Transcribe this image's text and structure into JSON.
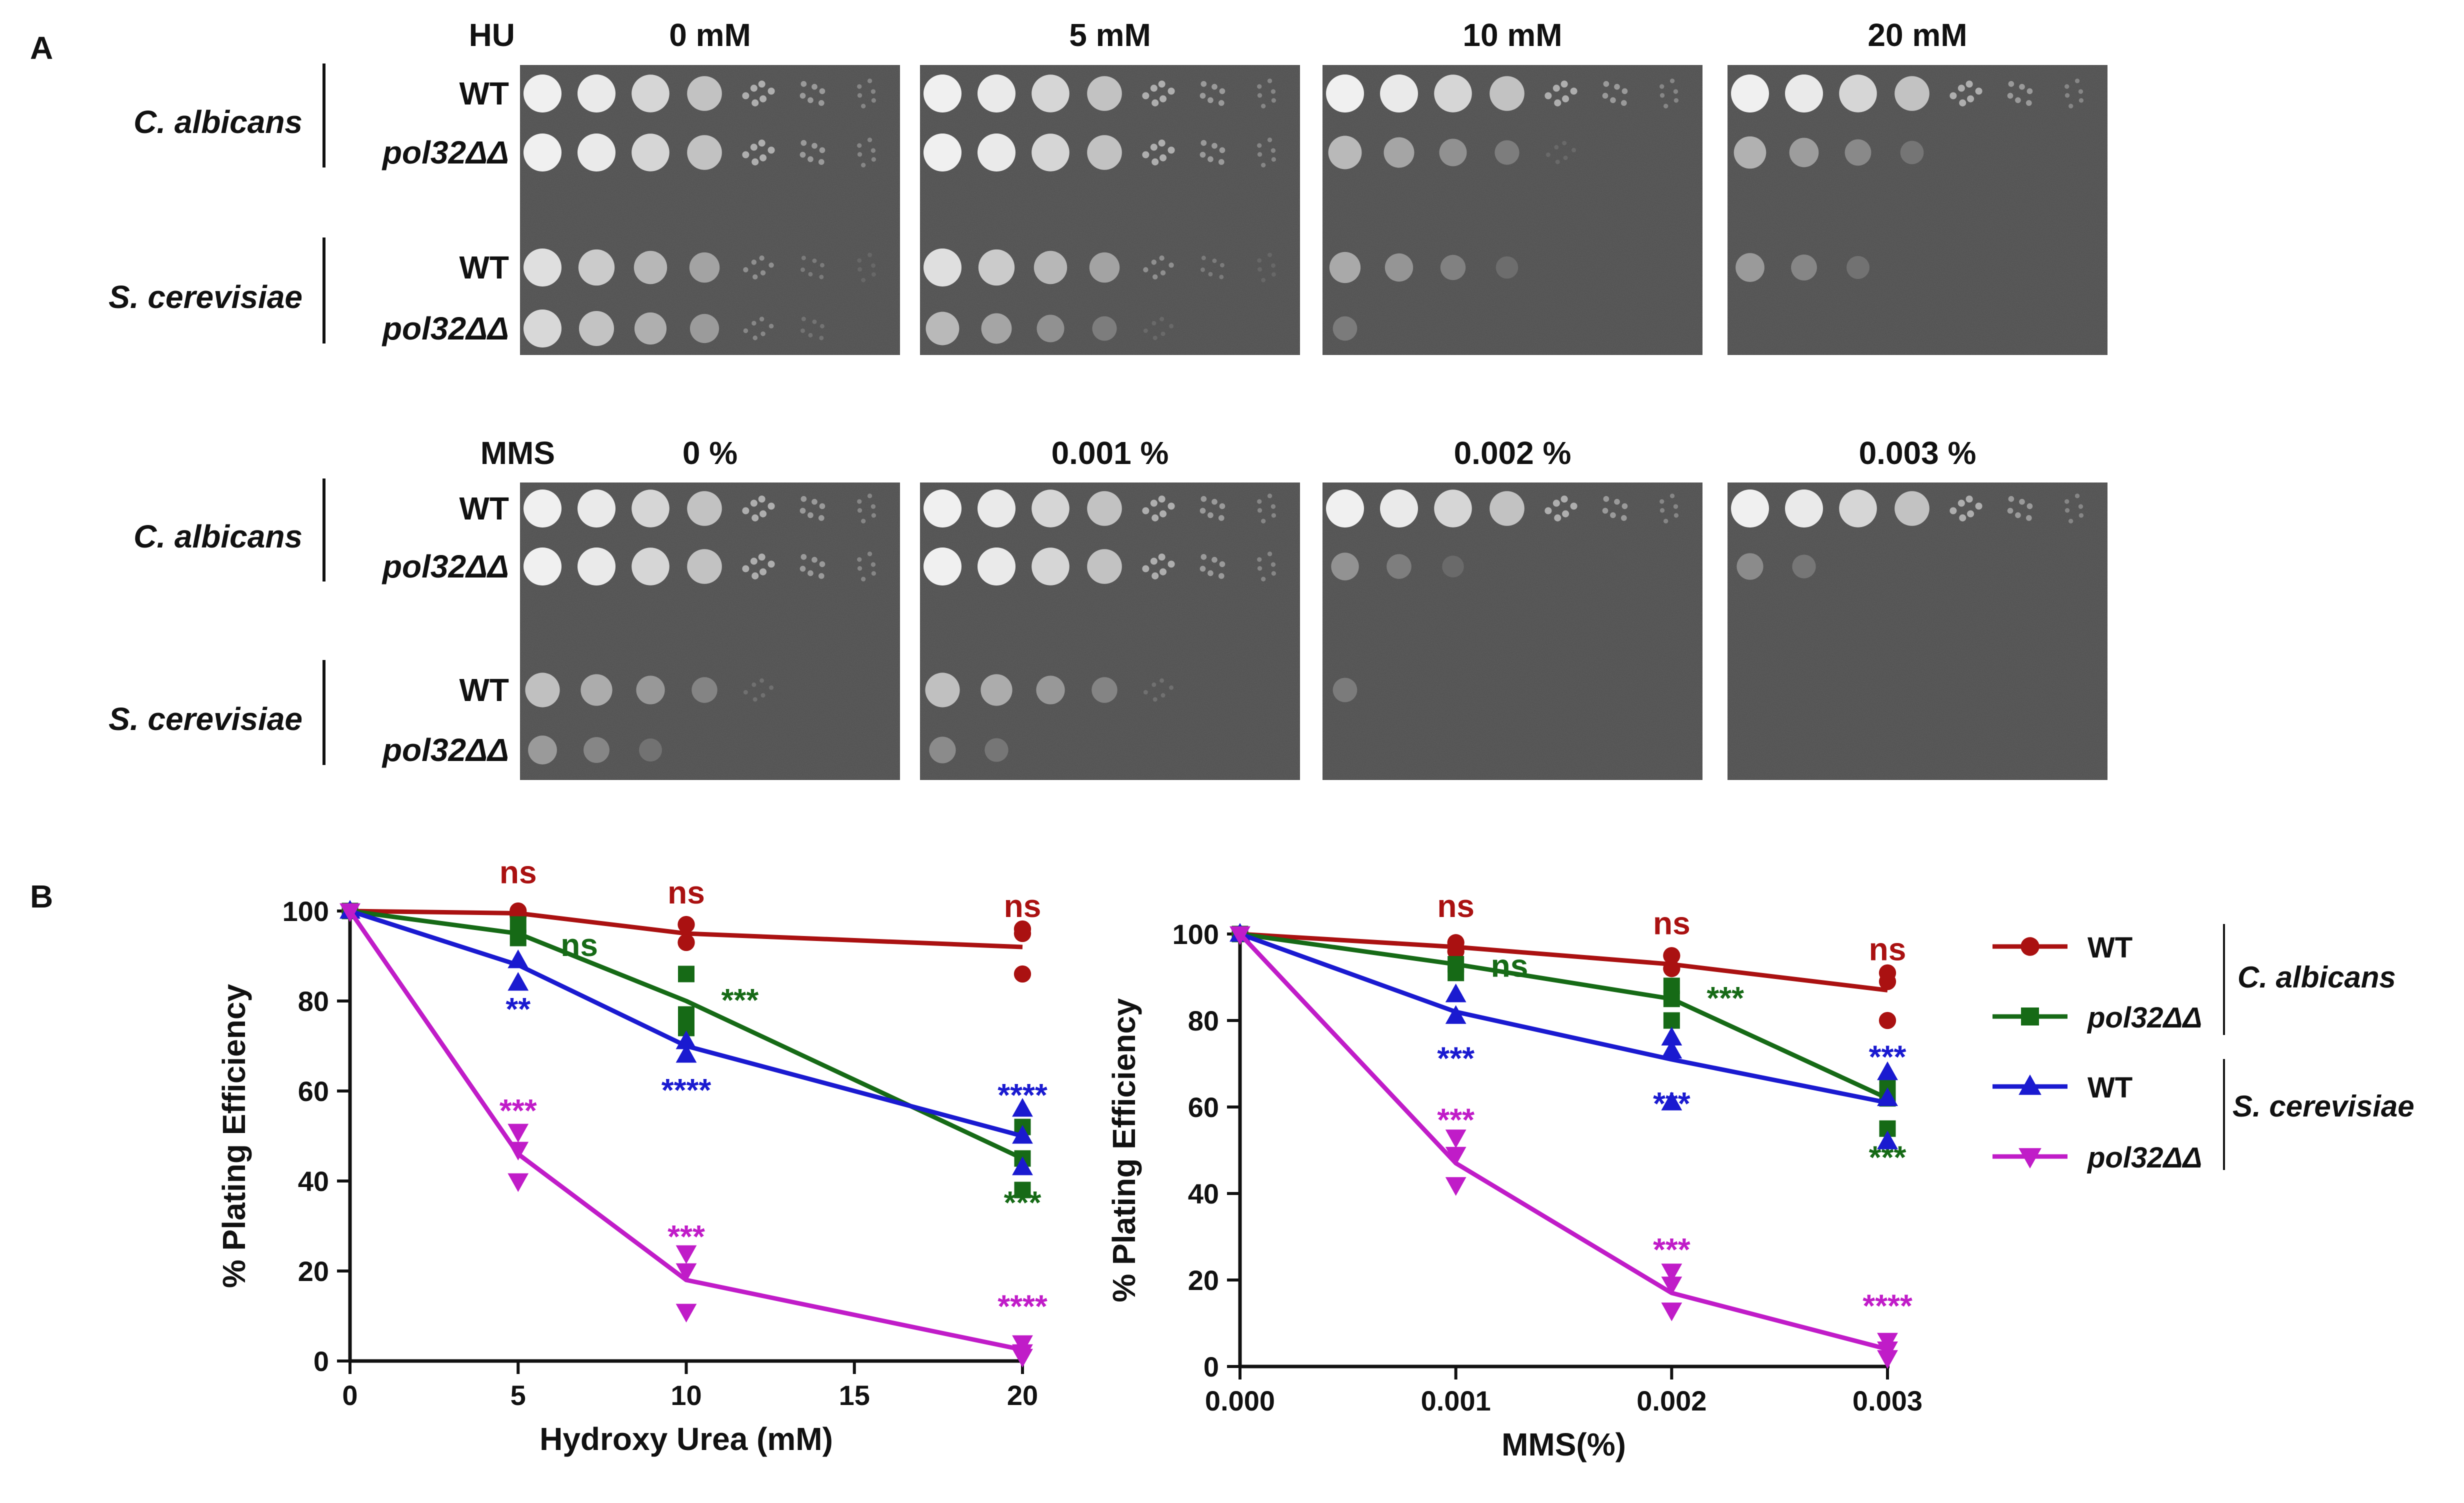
{
  "panel_a": {
    "label": "A",
    "hu": {
      "agent": "HU",
      "concentrations": [
        "0 mM",
        "5 mM",
        "10 mM",
        "20 mM"
      ],
      "growth": {
        "calb_wt": [
          1.0,
          1.0,
          1.0,
          1.0
        ],
        "calb_pol": [
          1.0,
          1.0,
          0.55,
          0.5
        ],
        "scer_wt": [
          0.8,
          0.8,
          0.45,
          0.35
        ],
        "scer_pol": [
          0.75,
          0.55,
          0.15,
          0.0
        ]
      }
    },
    "mms": {
      "agent": "MMS",
      "concentrations": [
        "0 %",
        "0.001 %",
        "0.002 %",
        "0.003 %"
      ],
      "growth": {
        "calb_wt": [
          1.0,
          1.0,
          1.0,
          1.0
        ],
        "calb_pol": [
          1.0,
          1.0,
          0.3,
          0.25
        ],
        "scer_wt": [
          0.6,
          0.6,
          0.15,
          0.0
        ],
        "scer_pol": [
          0.35,
          0.25,
          0.0,
          0.0
        ]
      }
    },
    "species": [
      "C. albicans",
      "S. cerevisiae"
    ],
    "strains": [
      "WT",
      "pol32ΔΔ"
    ]
  },
  "panel_b": {
    "label": "B",
    "legend": {
      "items": [
        {
          "label": "WT",
          "color": "#aa1111",
          "marker": "circle"
        },
        {
          "label": "pol32ΔΔ",
          "color": "#166a16",
          "marker": "square"
        },
        {
          "label": "WT",
          "color": "#1a1ad0",
          "marker": "triangle-up"
        },
        {
          "label": "pol32ΔΔ",
          "color": "#c01cc8",
          "marker": "triangle-down"
        }
      ],
      "group_labels": [
        "C. albicans",
        "S. cerevisiae"
      ]
    }
  },
  "chart_data": [
    {
      "type": "line",
      "xlabel": "Hydroxy Urea (mM)",
      "ylabel": "% Plating Efficiency",
      "xlim": [
        0,
        20
      ],
      "ylim": [
        0,
        100
      ],
      "xticks": [
        0,
        5,
        10,
        15,
        20
      ],
      "yticks": [
        0,
        20,
        40,
        60,
        80,
        100
      ],
      "x": [
        0,
        5,
        10,
        20
      ],
      "series": [
        {
          "key": "calb_wt",
          "color": "#aa1111",
          "marker": "circle",
          "values": [
            100,
            99.5,
            95,
            92
          ],
          "points": [
            [
              0,
              100
            ],
            [
              5,
              100
            ],
            [
              5,
              99
            ],
            [
              10,
              97
            ],
            [
              10,
              93
            ],
            [
              20,
              96
            ],
            [
              20,
              95
            ],
            [
              20,
              86
            ]
          ],
          "annotations": [
            {
              "x": 5,
              "text": "ns"
            },
            {
              "x": 10,
              "text": "ns"
            },
            {
              "x": 20,
              "text": "ns"
            }
          ]
        },
        {
          "key": "calb_pol",
          "color": "#166a16",
          "marker": "square",
          "values": [
            100,
            95,
            80,
            45
          ],
          "points": [
            [
              0,
              100
            ],
            [
              5,
              97
            ],
            [
              5,
              94
            ],
            [
              10,
              86
            ],
            [
              10,
              77
            ],
            [
              10,
              74
            ],
            [
              20,
              52
            ],
            [
              20,
              45
            ],
            [
              20,
              38
            ]
          ],
          "annotations": [
            {
              "x": 5,
              "text": "ns"
            },
            {
              "x": 10,
              "text": "***"
            },
            {
              "x": 20,
              "text": "***"
            }
          ]
        },
        {
          "key": "scer_wt",
          "color": "#1a1ad0",
          "marker": "triangle-up",
          "values": [
            100,
            88,
            70,
            50
          ],
          "points": [
            [
              0,
              100
            ],
            [
              5,
              89
            ],
            [
              5,
              84
            ],
            [
              10,
              71
            ],
            [
              10,
              68
            ],
            [
              20,
              56
            ],
            [
              20,
              50
            ],
            [
              20,
              43
            ]
          ],
          "annotations": [
            {
              "x": 5,
              "text": "**"
            },
            {
              "x": 10,
              "text": "****"
            },
            {
              "x": 20,
              "text": "****"
            }
          ]
        },
        {
          "key": "scer_pol",
          "color": "#c01cc8",
          "marker": "triangle-down",
          "values": [
            100,
            46,
            18,
            2.5
          ],
          "points": [
            [
              0,
              100
            ],
            [
              5,
              51
            ],
            [
              5,
              47
            ],
            [
              5,
              40
            ],
            [
              10,
              24
            ],
            [
              10,
              20
            ],
            [
              10,
              11
            ],
            [
              20,
              4
            ],
            [
              20,
              2
            ],
            [
              20,
              1
            ]
          ],
          "annotations": [
            {
              "x": 5,
              "text": "***"
            },
            {
              "x": 10,
              "text": "***"
            },
            {
              "x": 20,
              "text": "****"
            }
          ]
        }
      ]
    },
    {
      "type": "line",
      "xlabel": "MMS(%)",
      "ylabel": "% Plating Efficiency",
      "xlim": [
        0,
        0.003
      ],
      "ylim": [
        0,
        100
      ],
      "xticks": [
        "0.000",
        "0.001",
        "0.002",
        "0.003"
      ],
      "yticks": [
        0,
        20,
        40,
        60,
        80,
        100
      ],
      "x": [
        0,
        0.001,
        0.002,
        0.003
      ],
      "series": [
        {
          "key": "calb_wt",
          "color": "#aa1111",
          "marker": "circle",
          "values": [
            100,
            97,
            93,
            87
          ],
          "points": [
            [
              0,
              100
            ],
            [
              0.001,
              98
            ],
            [
              0.001,
              96
            ],
            [
              0.002,
              95
            ],
            [
              0.002,
              92
            ],
            [
              0.003,
              91
            ],
            [
              0.003,
              89
            ],
            [
              0.003,
              80
            ]
          ],
          "annotations": [
            {
              "x": 0.001,
              "text": "ns"
            },
            {
              "x": 0.002,
              "text": "ns"
            },
            {
              "x": 0.003,
              "text": "ns"
            }
          ]
        },
        {
          "key": "calb_pol",
          "color": "#166a16",
          "marker": "square",
          "values": [
            100,
            93,
            85,
            62
          ],
          "points": [
            [
              0,
              100
            ],
            [
              0.001,
              93
            ],
            [
              0.001,
              91
            ],
            [
              0.002,
              88
            ],
            [
              0.002,
              85
            ],
            [
              0.002,
              80
            ],
            [
              0.003,
              65
            ],
            [
              0.003,
              62
            ],
            [
              0.003,
              55
            ]
          ],
          "annotations": [
            {
              "x": 0.001,
              "text": "ns"
            },
            {
              "x": 0.002,
              "text": "***"
            },
            {
              "x": 0.003,
              "text": "***"
            }
          ]
        },
        {
          "key": "scer_wt",
          "color": "#1a1ad0",
          "marker": "triangle-up",
          "values": [
            100,
            82,
            71,
            61
          ],
          "points": [
            [
              0,
              100
            ],
            [
              0.001,
              86
            ],
            [
              0.001,
              81
            ],
            [
              0.002,
              76
            ],
            [
              0.002,
              73
            ],
            [
              0.002,
              61
            ],
            [
              0.003,
              68
            ],
            [
              0.003,
              62
            ],
            [
              0.003,
              52
            ]
          ],
          "annotations": [
            {
              "x": 0.001,
              "text": "***"
            },
            {
              "x": 0.002,
              "text": "***"
            },
            {
              "x": 0.003,
              "text": "***"
            }
          ]
        },
        {
          "key": "scer_pol",
          "color": "#c01cc8",
          "marker": "triangle-down",
          "values": [
            100,
            47,
            17,
            4
          ],
          "points": [
            [
              0,
              100
            ],
            [
              0.001,
              53
            ],
            [
              0.001,
              49
            ],
            [
              0.001,
              42
            ],
            [
              0.002,
              22
            ],
            [
              0.002,
              19
            ],
            [
              0.002,
              13
            ],
            [
              0.003,
              6
            ],
            [
              0.003,
              4
            ],
            [
              0.003,
              2
            ]
          ],
          "annotations": [
            {
              "x": 0.001,
              "text": "***"
            },
            {
              "x": 0.002,
              "text": "***"
            },
            {
              "x": 0.003,
              "text": "****"
            }
          ]
        }
      ]
    }
  ]
}
